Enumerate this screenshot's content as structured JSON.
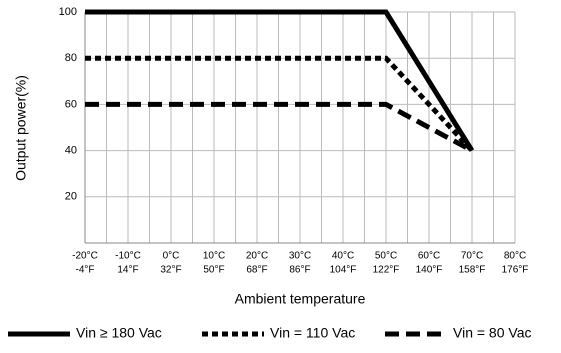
{
  "chart_data": {
    "type": "line",
    "x_label": "Ambient temperature",
    "y_label": "Output power(%)",
    "x": [
      -20,
      50,
      70
    ],
    "series": [
      {
        "name": "Vin ≥ 180 Vac",
        "color": "#000000",
        "dash": "solid",
        "values": [
          100,
          100,
          40
        ]
      },
      {
        "name": "Vin = 110 Vac",
        "color": "#000000",
        "dash": "dotted",
        "values": [
          80,
          80,
          40
        ]
      },
      {
        "name": "Vin = 80 Vac",
        "color": "#000000",
        "dash": "dashed",
        "values": [
          60,
          60,
          40
        ]
      }
    ],
    "xlim": [
      -20,
      80
    ],
    "ylim": [
      0,
      100
    ],
    "xticks": [
      {
        "value": -20,
        "label": "-20°C"
      },
      {
        "value": -10,
        "label": "-10°C"
      },
      {
        "value": 0,
        "label": "0°C"
      },
      {
        "value": 10,
        "label": "10°C"
      },
      {
        "value": 20,
        "label": "20°C"
      },
      {
        "value": 30,
        "label": "30°C"
      },
      {
        "value": 40,
        "label": "40°C"
      },
      {
        "value": 50,
        "label": "50°C"
      },
      {
        "value": 60,
        "label": "60°C"
      },
      {
        "value": 70,
        "label": "70°C"
      },
      {
        "value": 80,
        "label": "80°C"
      }
    ],
    "xtick_labels_f": [
      "-4°F",
      "14°F",
      "32°F",
      "50°F",
      "68°F",
      "86°F",
      "104°F",
      "122°F",
      "140°F",
      "158°F",
      "176°F"
    ],
    "x_minor_grid": [
      -15,
      -5,
      5,
      15,
      25,
      35,
      45,
      55,
      65,
      75
    ],
    "yticks": [
      20,
      40,
      60,
      80,
      100
    ],
    "grid": true
  }
}
